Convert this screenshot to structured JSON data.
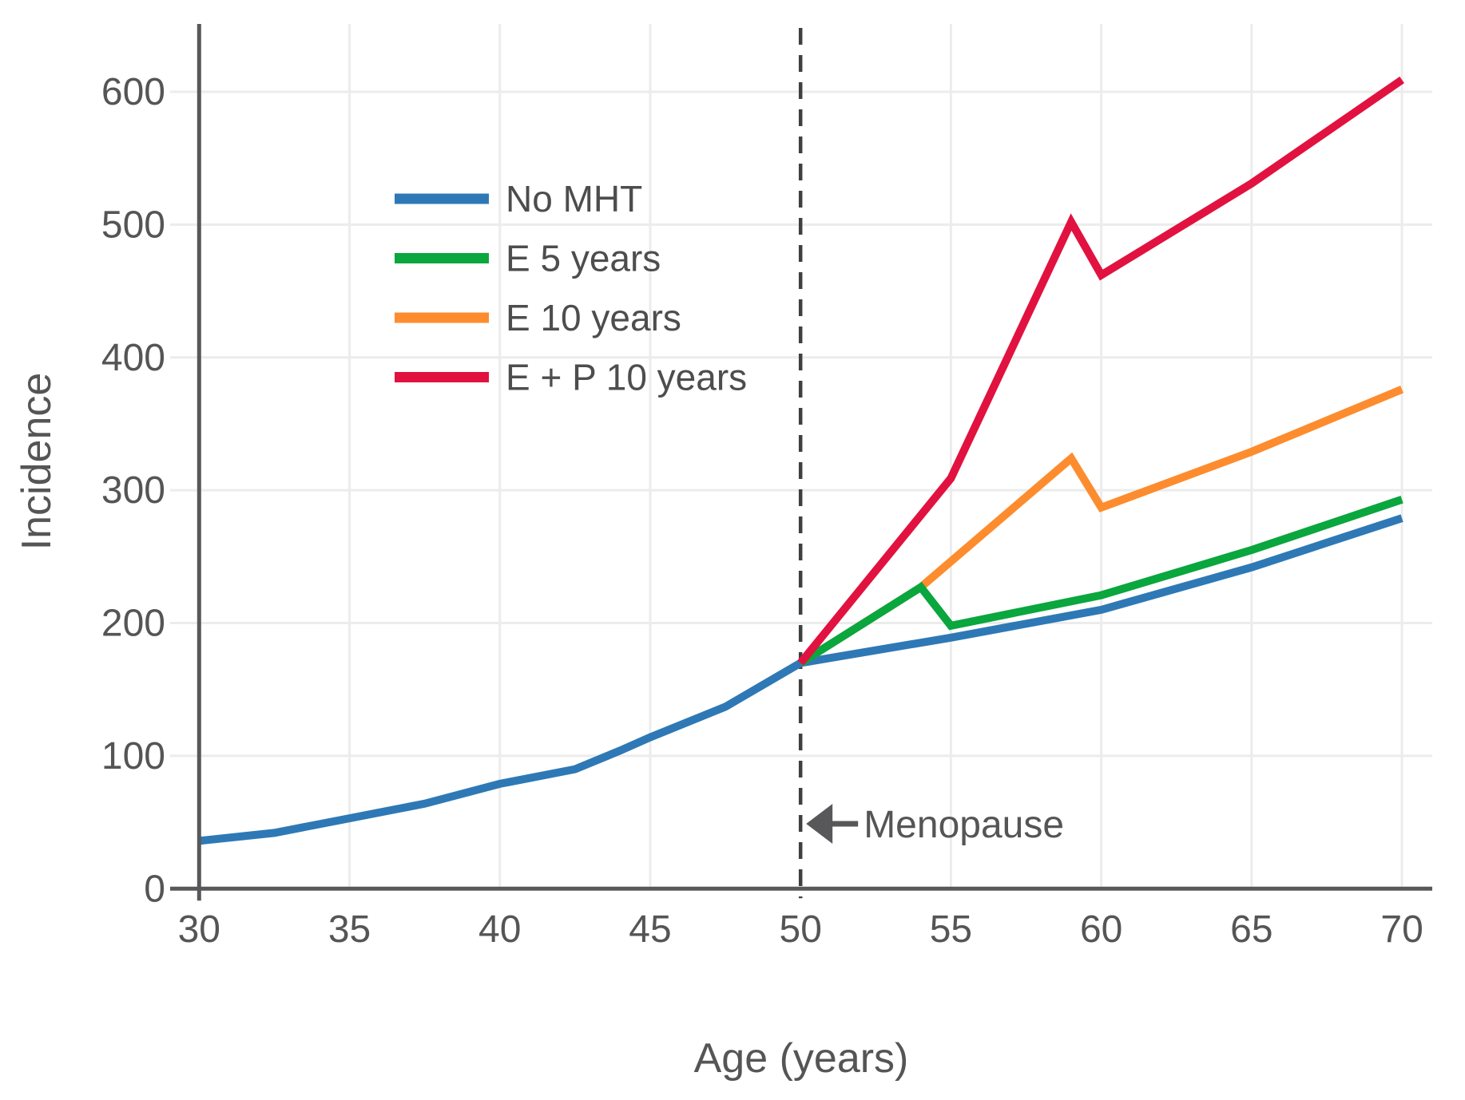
{
  "chart_data": {
    "type": "line",
    "title": "",
    "xlabel": "Age (years)",
    "ylabel": "Incidence",
    "xlim": [
      30,
      70
    ],
    "ylim": [
      0,
      650
    ],
    "xticks": [
      30,
      35,
      40,
      45,
      50,
      55,
      60,
      65,
      70
    ],
    "yticks": [
      0,
      100,
      200,
      300,
      400,
      500,
      600
    ],
    "grid": true,
    "legend_position": "upper-left-inside",
    "series": [
      {
        "name": "No MHT",
        "color": "#2e79b5",
        "points": [
          [
            30,
            36
          ],
          [
            32.5,
            42
          ],
          [
            35,
            53
          ],
          [
            37.5,
            64
          ],
          [
            40,
            79
          ],
          [
            42.5,
            90
          ],
          [
            44,
            104
          ],
          [
            45,
            114
          ],
          [
            47.5,
            137
          ],
          [
            50,
            170
          ],
          [
            55,
            189
          ],
          [
            60,
            210
          ],
          [
            65,
            242
          ],
          [
            70,
            279
          ]
        ]
      },
      {
        "name": "E 10 years",
        "color": "#fd8c2e",
        "points": [
          [
            50,
            170
          ],
          [
            54,
            227
          ],
          [
            59,
            324
          ],
          [
            60,
            287
          ],
          [
            65,
            329
          ],
          [
            70,
            376
          ]
        ]
      },
      {
        "name": "E 5 years",
        "color": "#0aa63e",
        "points": [
          [
            50,
            170
          ],
          [
            54,
            227
          ],
          [
            55,
            198
          ],
          [
            60,
            221
          ],
          [
            65,
            255
          ],
          [
            70,
            293
          ]
        ]
      },
      {
        "name": "E + P 10 years",
        "color": "#e1123f",
        "points": [
          [
            50,
            170
          ],
          [
            55,
            309
          ],
          [
            59,
            502
          ],
          [
            60,
            462
          ],
          [
            65,
            531
          ],
          [
            70,
            609
          ]
        ]
      }
    ],
    "legend_order": [
      "No MHT",
      "E 5 years",
      "E 10 years",
      "E + P 10 years"
    ],
    "annotations": [
      {
        "text": "Menopause",
        "x": 50,
        "style": "dashed-vline-with-left-arrow"
      }
    ]
  }
}
